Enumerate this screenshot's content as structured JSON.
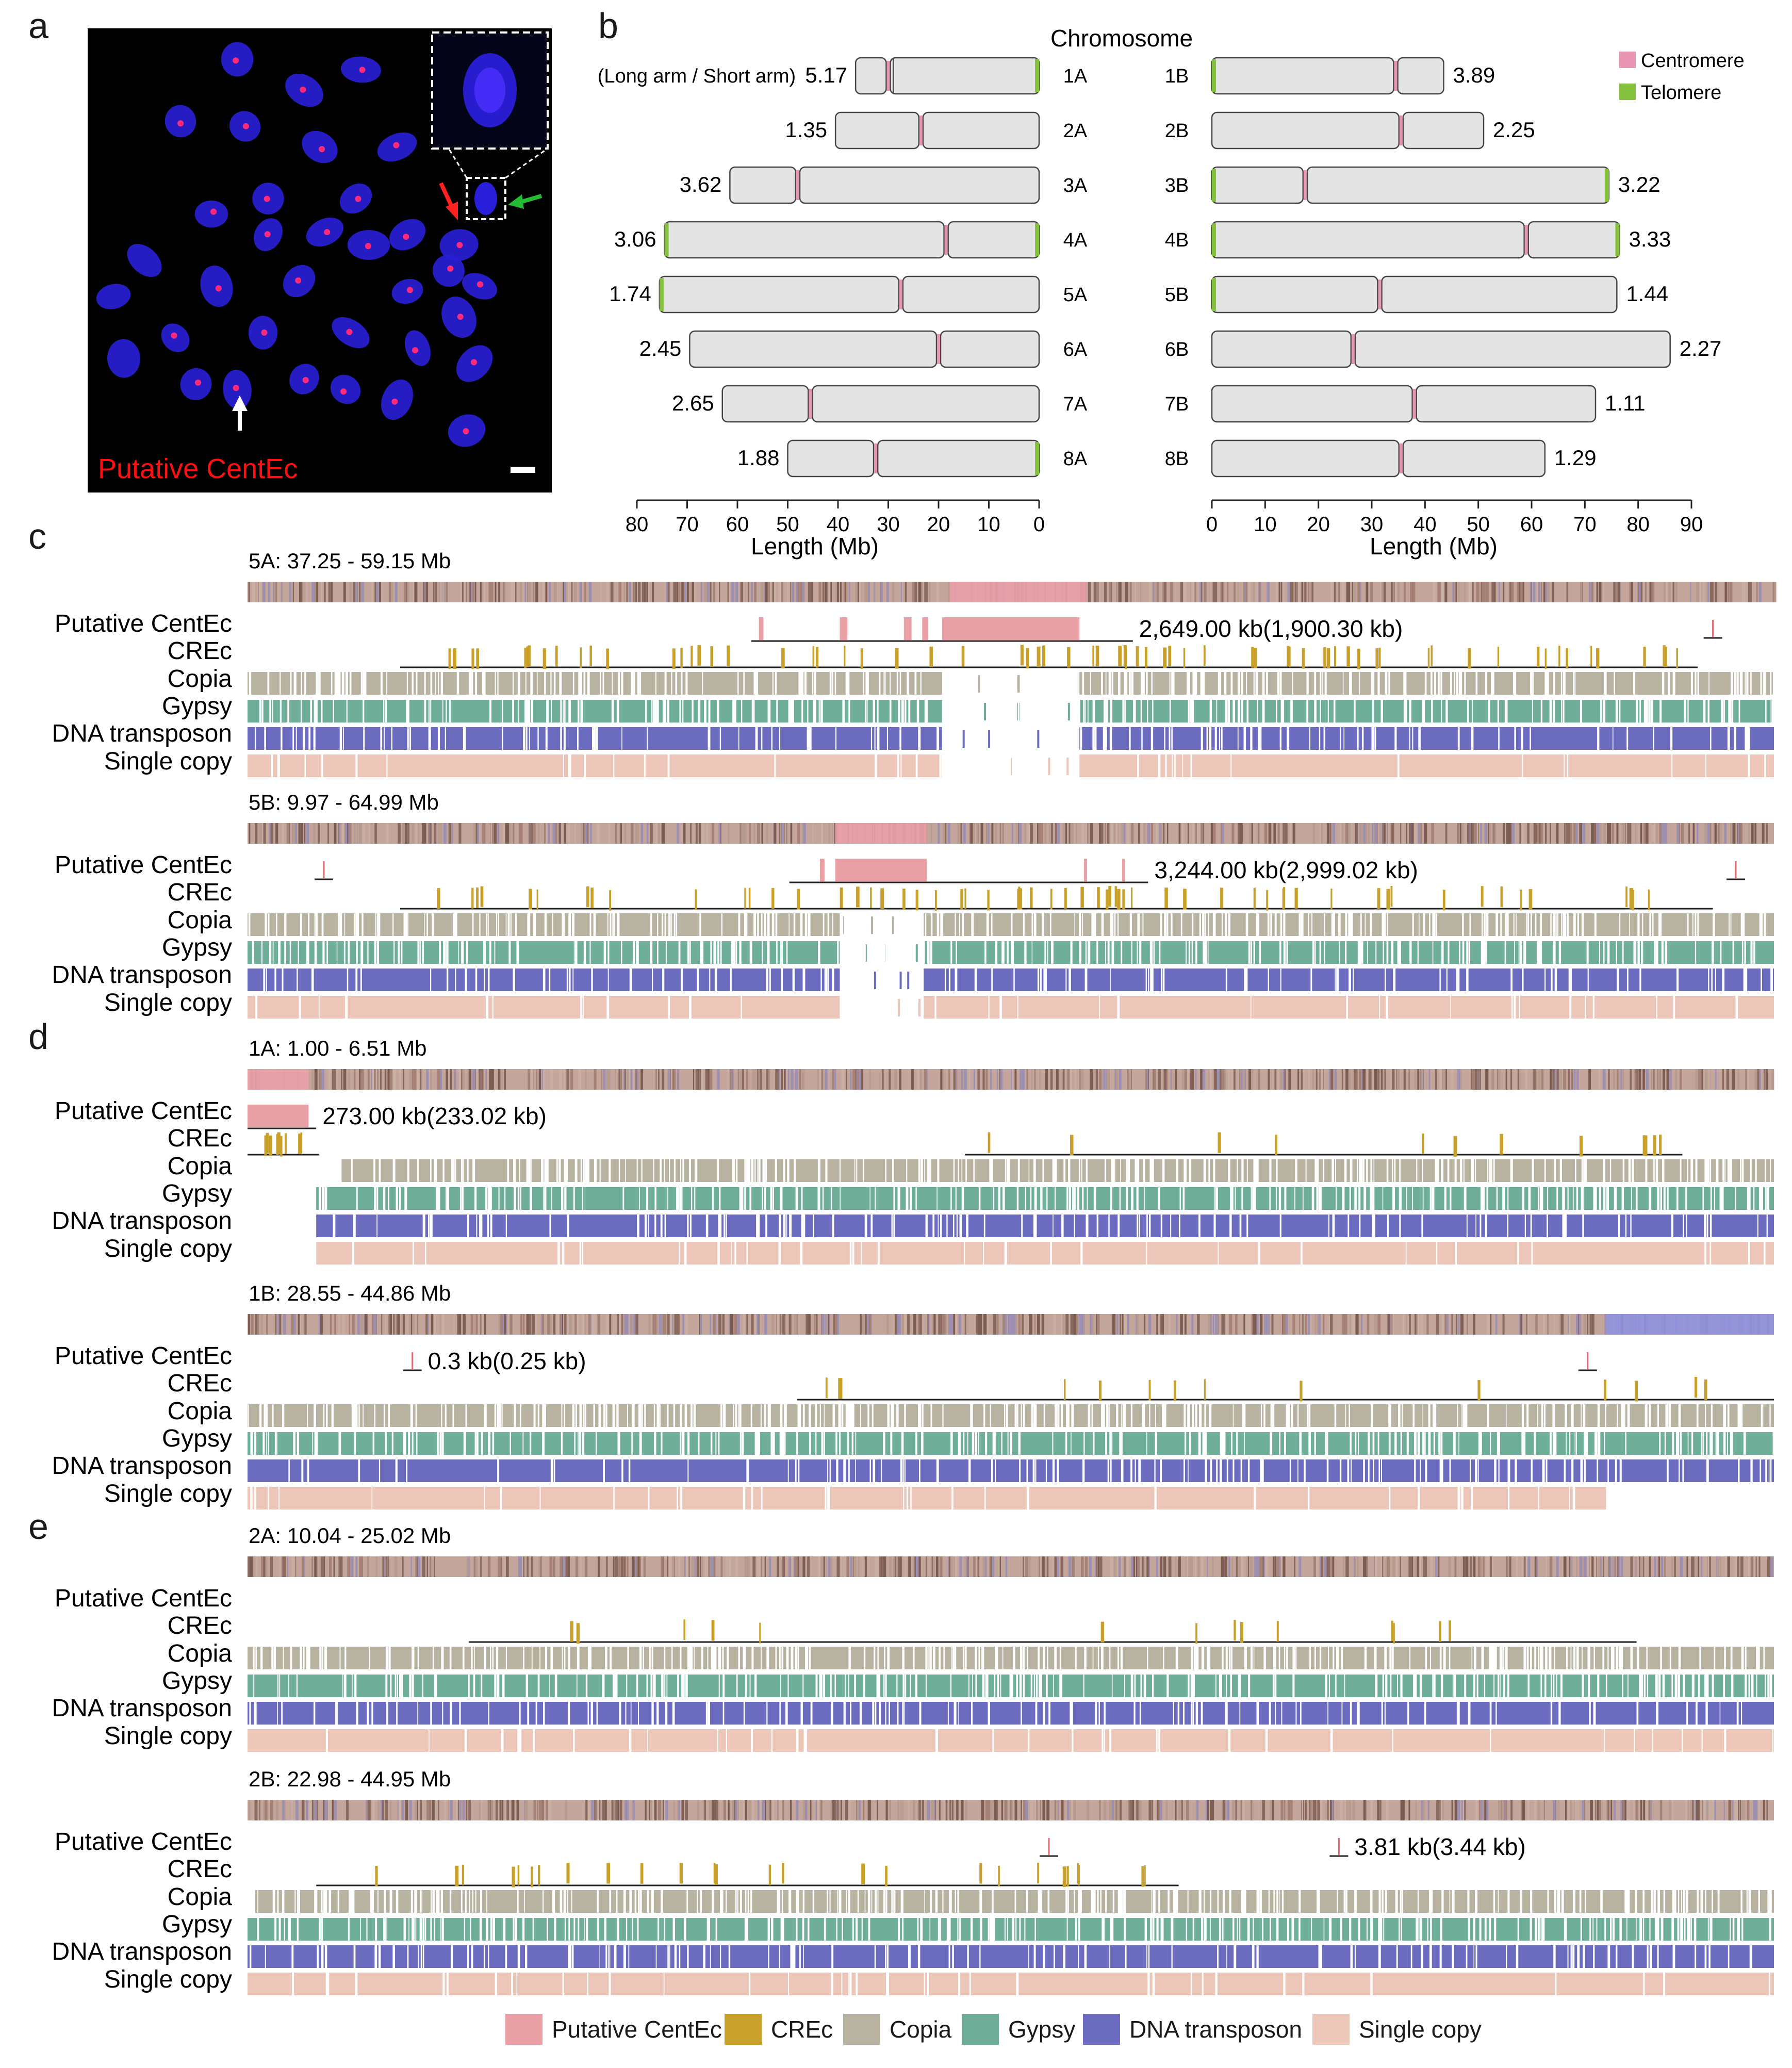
{
  "panel_labels": {
    "a": "a",
    "b": "b",
    "c": "c",
    "d": "d",
    "e": "e"
  },
  "colors": {
    "centromere": "#e895b4",
    "telomere": "#86c13e",
    "chrom_fill": "#e4e4e4",
    "chrom_stroke": "#444444",
    "centec": "#e9a1a6",
    "crec": "#c9a02a",
    "copia": "#b8b3a1",
    "gypsy": "#6fae98",
    "dna": "#6b6bbf",
    "single": "#ecc6b8",
    "micrograph_bg": "#000000",
    "nucleus": "#2a1fd8",
    "signal": "#ff2a7a",
    "label_red": "#ff1010"
  },
  "panel_a": {
    "label": "Putative CentEc",
    "inset": "enlarged view",
    "arrows": [
      {
        "color": "red"
      },
      {
        "color": "green"
      },
      {
        "color": "white"
      }
    ]
  },
  "chart_data": [
    {
      "type": "ideogram",
      "title": "Chromosome",
      "xlabel_left": "Length (Mb)",
      "xlabel_right": "Length (Mb)",
      "left_axis": {
        "range": [
          80,
          0
        ],
        "ticks": [
          "80",
          "70",
          "60",
          "50",
          "40",
          "30",
          "20",
          "10",
          "0"
        ]
      },
      "right_axis": {
        "range": [
          0,
          90
        ],
        "ticks": [
          "0",
          "10",
          "20",
          "30",
          "40",
          "50",
          "60",
          "70",
          "80",
          "90"
        ]
      },
      "ratio_header": "(Long arm / Short arm)",
      "legend": [
        {
          "name": "Centromere",
          "color": "#e895b4"
        },
        {
          "name": "Telomere",
          "color": "#86c13e"
        }
      ],
      "left_chromosomes": [
        {
          "name": "1A",
          "ratio": "5.17",
          "length": 36.5,
          "centromere": 30.0,
          "telomere_left": false,
          "telomere_right": true,
          "extra_band": 29.0
        },
        {
          "name": "2A",
          "ratio": "1.35",
          "length": 40.5,
          "centromere": 23.5,
          "telomere_left": false,
          "telomere_right": false
        },
        {
          "name": "3A",
          "ratio": "3.62",
          "length": 61.5,
          "centromere": 48.0,
          "telomere_left": false,
          "telomere_right": false
        },
        {
          "name": "4A",
          "ratio": "3.06",
          "length": 74.5,
          "centromere": 18.5,
          "telomere_left": true,
          "telomere_right": true
        },
        {
          "name": "5A",
          "ratio": "1.74",
          "length": 75.5,
          "centromere": 27.5,
          "telomere_left": true,
          "telomere_right": false
        },
        {
          "name": "6A",
          "ratio": "2.45",
          "length": 69.5,
          "centromere": 20.0,
          "telomere_left": false,
          "telomere_right": false
        },
        {
          "name": "7A",
          "ratio": "2.65",
          "length": 63.0,
          "centromere": 45.5,
          "telomere_left": false,
          "telomere_right": false
        },
        {
          "name": "8A",
          "ratio": "1.88",
          "length": 50.0,
          "centromere": 32.5,
          "telomere_left": false,
          "telomere_right": true
        }
      ],
      "right_chromosomes": [
        {
          "name": "1B",
          "ratio": "3.89",
          "length": 43.5,
          "centromere": 34.5,
          "telomere_left": true,
          "telomere_right": false
        },
        {
          "name": "2B",
          "ratio": "2.25",
          "length": 51.0,
          "centromere": 35.5,
          "telomere_left": false,
          "telomere_right": false
        },
        {
          "name": "3B",
          "ratio": "3.22",
          "length": 74.5,
          "centromere": 17.5,
          "telomere_left": true,
          "telomere_right": true
        },
        {
          "name": "4B",
          "ratio": "3.33",
          "length": 76.5,
          "centromere": 59.0,
          "telomere_left": true,
          "telomere_right": true
        },
        {
          "name": "5B",
          "ratio": "1.44",
          "length": 76.0,
          "centromere": 31.5,
          "telomere_left": true,
          "telomere_right": false
        },
        {
          "name": "6B",
          "ratio": "2.27",
          "length": 86.0,
          "centromere": 26.5,
          "telomere_left": false,
          "telomere_right": false
        },
        {
          "name": "7B",
          "ratio": "1.11",
          "length": 72.0,
          "centromere": 38.0,
          "telomere_left": false,
          "telomere_right": false
        },
        {
          "name": "8B",
          "ratio": "1.29",
          "length": 62.5,
          "centromere": 35.5,
          "telomere_left": false,
          "telomere_right": false
        }
      ]
    },
    {
      "type": "track_panels",
      "track_labels": [
        "Putative CentEc",
        "CREc",
        "Copia",
        "Gypsy",
        "DNA transposon",
        "Single copy"
      ],
      "legend": [
        {
          "name": "Putative CentEc",
          "color": "#e9a1a6"
        },
        {
          "name": "CREc",
          "color": "#c9a02a"
        },
        {
          "name": "Copia",
          "color": "#b8b3a1"
        },
        {
          "name": "Gypsy",
          "color": "#6fae98"
        },
        {
          "name": "DNA transposon",
          "color": "#6b6bbf"
        },
        {
          "name": "Single copy",
          "color": "#ecc6b8"
        }
      ],
      "regions": [
        {
          "panel": "c",
          "title": "5A: 37.25 - 59.15 Mb",
          "centec_blocks": [
            [
              0.335,
              0.338
            ],
            [
              0.388,
              0.393
            ],
            [
              0.43,
              0.435
            ],
            [
              0.442,
              0.446
            ],
            [
              0.455,
              0.545
            ]
          ],
          "centec_label": "2,649.00 kb(1,900.30 kb)",
          "centec_line": [
            0.33,
            0.58
          ],
          "small_centec": [
            0.96
          ],
          "crec_span": [
            0.1,
            0.95
          ],
          "crec_count": 70,
          "gaps": [
            0.455,
            0.545
          ],
          "header_pink": [
            0.46,
            0.55
          ]
        },
        {
          "panel": "c",
          "title": "5B: 9.97 - 64.99 Mb",
          "centec_blocks": [
            [
              0.375,
              0.378
            ],
            [
              0.385,
              0.445
            ],
            [
              0.548,
              0.55
            ],
            [
              0.573,
              0.575
            ]
          ],
          "centec_label": "3,244.00 kb(2,999.02 kb)",
          "centec_line": [
            0.355,
            0.59
          ],
          "small_centec": [
            0.05,
            0.975
          ],
          "crec_span": [
            0.1,
            0.96
          ],
          "crec_count": 60,
          "gaps": [
            0.388,
            0.443
          ],
          "header_pink": [
            0.385,
            0.445
          ]
        },
        {
          "panel": "d",
          "title": "1A: 1.00 - 6.51 Mb",
          "centec_blocks": [
            [
              0.0,
              0.04
            ]
          ],
          "centec_label": "273.00 kb(233.02 kb)",
          "centec_line": [
            0.0,
            0.045
          ],
          "small_centec": [],
          "crec_span": [
            0.0,
            0.047
          ],
          "crec_span2": [
            0.47,
            0.94
          ],
          "crec_count": 24,
          "gaps": [],
          "header_pink": [
            0.0,
            0.04
          ]
        },
        {
          "panel": "d",
          "title": "1B: 28.55 - 44.86 Mb",
          "centec_blocks": [],
          "centec_label": "0.3 kb(0.25 kb)",
          "centec_line": null,
          "small_centec": [
            0.108,
            0.878
          ],
          "crec_span": [
            0.36,
            1.0
          ],
          "crec_count": 14,
          "gaps": [],
          "header_pink": null,
          "header_blue": [
            0.89,
            1.0
          ]
        },
        {
          "panel": "e",
          "title": "2A: 10.04 - 25.02 Mb",
          "centec_blocks": [],
          "centec_label": "",
          "centec_line": null,
          "small_centec": [],
          "crec_span": [
            0.145,
            0.91
          ],
          "crec_count": 14,
          "gaps": [],
          "header_pink": null
        },
        {
          "panel": "e",
          "title": "2B: 22.98 - 44.95 Mb",
          "centec_blocks": [],
          "centec_label": "3.81 kb(3.44 kb)",
          "centec_line": null,
          "small_centec": [
            0.525,
            0.715
          ],
          "crec_span": [
            0.045,
            0.61
          ],
          "crec_count": 26,
          "gaps": [],
          "header_pink": null
        }
      ]
    }
  ]
}
